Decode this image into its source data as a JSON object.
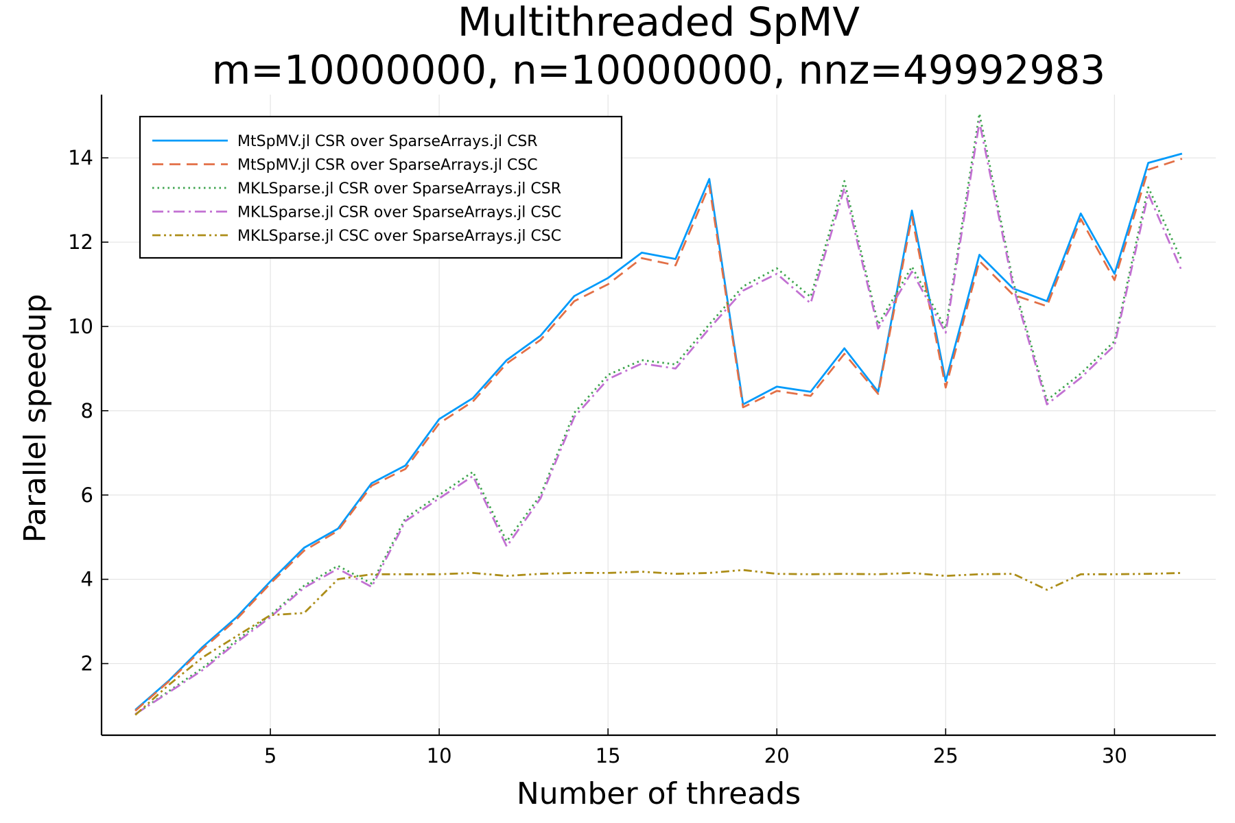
{
  "chart_data": {
    "type": "line",
    "title": "Multithreaded SpMV",
    "subtitle": "m=10000000, n=10000000, nnz=49992983",
    "xlabel": "Number of threads",
    "ylabel": "Parallel speedup",
    "xlim": [
      0,
      33
    ],
    "ylim": [
      0.3,
      15.5
    ],
    "xticks": [
      5,
      10,
      15,
      20,
      25,
      30
    ],
    "yticks": [
      2,
      4,
      6,
      8,
      10,
      12,
      14
    ],
    "grid": true,
    "legend_position": "top-left",
    "x": [
      1,
      2,
      3,
      4,
      5,
      6,
      7,
      8,
      9,
      10,
      11,
      12,
      13,
      14,
      15,
      16,
      17,
      18,
      19,
      20,
      21,
      22,
      23,
      24,
      25,
      26,
      27,
      28,
      29,
      30,
      31,
      32
    ],
    "series": [
      {
        "name": "MtSpMV.jl CSR over SparseArrays.jl CSR",
        "color": "#009AFA",
        "dash": "solid",
        "values": [
          0.9,
          1.6,
          2.4,
          3.1,
          3.95,
          4.75,
          5.2,
          6.28,
          6.7,
          7.8,
          8.3,
          9.2,
          9.78,
          10.72,
          11.15,
          11.75,
          11.6,
          13.5,
          8.15,
          8.57,
          8.45,
          9.48,
          8.45,
          12.75,
          8.7,
          11.7,
          10.9,
          10.6,
          12.68,
          11.25,
          13.88,
          14.1
        ]
      },
      {
        "name": "MtSpMV.jl CSR over SparseArrays.jl CSC",
        "color": "#E26F46",
        "dash": "dash",
        "values": [
          0.88,
          1.58,
          2.35,
          3.05,
          3.9,
          4.68,
          5.15,
          6.22,
          6.62,
          7.7,
          8.22,
          9.12,
          9.68,
          10.6,
          11.0,
          11.62,
          11.45,
          13.35,
          8.08,
          8.47,
          8.35,
          9.35,
          8.4,
          12.6,
          8.55,
          11.55,
          10.75,
          10.48,
          12.55,
          11.1,
          13.72,
          13.98
        ]
      },
      {
        "name": "MKLSparse.jl CSR over SparseArrays.jl CSR",
        "color": "#3DA44D",
        "dash": "dot",
        "values": [
          0.8,
          1.35,
          1.9,
          2.55,
          3.15,
          3.85,
          4.32,
          3.9,
          5.45,
          6.0,
          6.55,
          4.9,
          6.0,
          7.95,
          8.85,
          9.2,
          9.1,
          10.05,
          10.95,
          11.38,
          10.7,
          13.45,
          10.05,
          11.42,
          9.95,
          15.05,
          11.05,
          8.25,
          8.88,
          9.65,
          13.3,
          11.55
        ]
      },
      {
        "name": "MKLSparse.jl CSR over SparseArrays.jl CSC",
        "color": "#C271D2",
        "dash": "dashdot",
        "values": [
          0.8,
          1.32,
          1.85,
          2.5,
          3.1,
          3.8,
          4.25,
          3.82,
          5.38,
          5.92,
          6.45,
          4.78,
          5.92,
          7.85,
          8.75,
          9.12,
          9.0,
          9.95,
          10.85,
          11.25,
          10.55,
          13.28,
          9.95,
          11.3,
          9.85,
          14.85,
          10.95,
          8.15,
          8.78,
          9.55,
          13.15,
          11.3
        ]
      },
      {
        "name": "MKLSparse.jl CSC over SparseArrays.jl CSC",
        "color": "#AC8D18",
        "dash": "dashdotdot",
        "values": [
          0.78,
          1.5,
          2.15,
          2.65,
          3.15,
          3.2,
          4.0,
          4.12,
          4.12,
          4.12,
          4.15,
          4.08,
          4.13,
          4.15,
          4.15,
          4.18,
          4.13,
          4.15,
          4.22,
          4.13,
          4.12,
          4.13,
          4.12,
          4.15,
          4.08,
          4.12,
          4.13,
          3.75,
          4.12,
          4.12,
          4.13,
          4.15
        ]
      }
    ]
  }
}
